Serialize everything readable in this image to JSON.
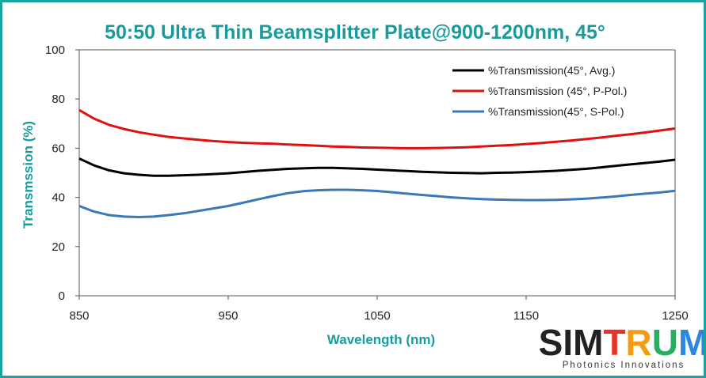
{
  "chart_data": {
    "type": "line",
    "title": "50:50 Ultra Thin Beamsplitter Plate@900-1200nm, 45°",
    "xlabel": "Wavelength (nm)",
    "ylabel": "Transmssion (%)",
    "xlim": [
      850,
      1250
    ],
    "ylim": [
      0,
      100
    ],
    "xticks": [
      850,
      950,
      1050,
      1150,
      1250
    ],
    "yticks": [
      0,
      20,
      40,
      60,
      80,
      100
    ],
    "grid": false,
    "legend_position": "top-right",
    "x": [
      850,
      860,
      870,
      880,
      890,
      900,
      910,
      920,
      930,
      940,
      950,
      960,
      970,
      980,
      990,
      1000,
      1010,
      1020,
      1030,
      1040,
      1050,
      1060,
      1070,
      1080,
      1090,
      1100,
      1110,
      1120,
      1130,
      1140,
      1150,
      1160,
      1170,
      1180,
      1190,
      1200,
      1210,
      1220,
      1230,
      1240,
      1250
    ],
    "series": [
      {
        "name": "%Transmission(45°, Avg.)",
        "color": "#000000",
        "values": [
          55.8,
          53,
          51,
          49.8,
          49.2,
          48.8,
          48.8,
          49,
          49.2,
          49.5,
          49.8,
          50.3,
          50.8,
          51.2,
          51.6,
          51.8,
          52,
          52,
          51.8,
          51.6,
          51.3,
          51,
          50.7,
          50.4,
          50.2,
          50,
          49.9,
          49.8,
          50,
          50.1,
          50.3,
          50.5,
          50.8,
          51.2,
          51.6,
          52.2,
          52.8,
          53.4,
          54,
          54.6,
          55.3
        ]
      },
      {
        "name": "%Transmission (45°, P-Pol.)",
        "color": "#e01010",
        "values": [
          75.5,
          72,
          69.5,
          67.8,
          66.5,
          65.5,
          64.6,
          64,
          63.4,
          62.9,
          62.5,
          62.2,
          62,
          61.8,
          61.5,
          61.3,
          61,
          60.7,
          60.5,
          60.3,
          60.2,
          60.1,
          60,
          60,
          60.1,
          60.2,
          60.4,
          60.7,
          61,
          61.3,
          61.7,
          62.1,
          62.6,
          63.1,
          63.7,
          64.3,
          65,
          65.7,
          66.4,
          67.2,
          68
        ]
      },
      {
        "name": "%Transmission(45°, S-Pol.)",
        "color": "#3a78b8",
        "values": [
          36.5,
          34.2,
          32.8,
          32.2,
          32,
          32.2,
          32.8,
          33.5,
          34.5,
          35.5,
          36.5,
          37.8,
          39.2,
          40.5,
          41.7,
          42.5,
          42.9,
          43.1,
          43.1,
          42.9,
          42.6,
          42.1,
          41.5,
          41,
          40.5,
          40,
          39.6,
          39.3,
          39.1,
          39,
          38.9,
          38.9,
          39,
          39.2,
          39.5,
          39.9,
          40.4,
          41,
          41.5,
          42,
          42.7
        ]
      }
    ]
  },
  "logo": {
    "main": "SIMTRUM",
    "sub": "Photonics Innovations"
  }
}
